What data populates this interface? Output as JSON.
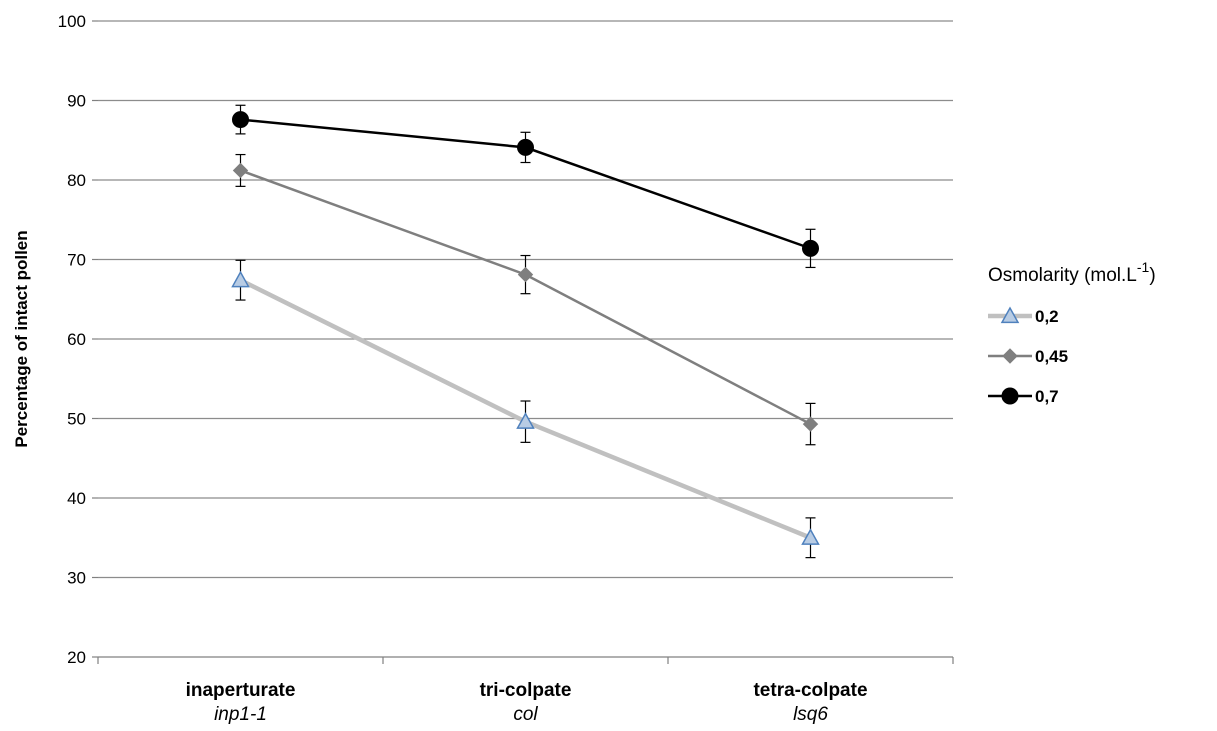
{
  "chart_data": {
    "type": "line",
    "title": "",
    "ylabel": "Percentage of intact pollen",
    "ylim": [
      20,
      100
    ],
    "yticks": [
      "20",
      "30",
      "40",
      "50",
      "60",
      "70",
      "80",
      "90",
      "100"
    ],
    "categories": [
      {
        "name": "inaperturate",
        "sub": "inp1-1"
      },
      {
        "name": "tri-colpate",
        "sub": "col"
      },
      {
        "name": "tetra-colpate",
        "sub": "lsq6"
      }
    ],
    "grid": true,
    "legend": {
      "title_main": "Osmolarity (mol.L",
      "title_sup": "-1",
      "title_end": ")",
      "placement": "right"
    },
    "series": [
      {
        "name": "0,2",
        "values": [
          67.4,
          49.6,
          35.0
        ],
        "errors": [
          2.5,
          2.6,
          2.5
        ],
        "color": "#c0c0c0",
        "marker": "triangle",
        "marker_fill": "#b8cce4",
        "marker_stroke": "#4f81bd"
      },
      {
        "name": "0,45",
        "values": [
          81.2,
          68.1,
          49.3
        ],
        "errors": [
          2.0,
          2.4,
          2.6
        ],
        "color": "#7f7f7f",
        "marker": "diamond",
        "marker_fill": "#7f7f7f",
        "marker_stroke": "#7f7f7f"
      },
      {
        "name": "0,7",
        "values": [
          87.6,
          84.1,
          71.4
        ],
        "errors": [
          1.8,
          1.9,
          2.4
        ],
        "color": "#000000",
        "marker": "circle",
        "marker_fill": "#000000",
        "marker_stroke": "#000000"
      }
    ]
  }
}
